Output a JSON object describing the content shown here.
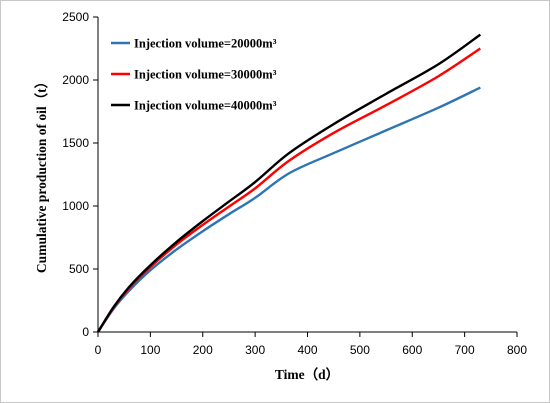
{
  "chart_data": {
    "type": "line",
    "title": "",
    "xlabel": "Time（d）",
    "ylabel": "Cumulative production of oil（t）",
    "xlim": [
      0,
      800
    ],
    "ylim": [
      0,
      2500
    ],
    "xticks": [
      0,
      100,
      200,
      300,
      400,
      500,
      600,
      700,
      800
    ],
    "yticks": [
      0,
      500,
      1000,
      1500,
      2000,
      2500
    ],
    "grid": false,
    "legend_position": "top-left",
    "series": [
      {
        "name": "Injection volume=20000m³",
        "color": "#2e75b6",
        "x": [
          0,
          30,
          60,
          100,
          150,
          200,
          250,
          300,
          365,
          450,
          550,
          650,
          730
        ],
        "y": [
          0,
          185,
          330,
          490,
          655,
          800,
          935,
          1065,
          1260,
          1420,
          1600,
          1780,
          1940
        ]
      },
      {
        "name": "Injection volume=30000m³",
        "color": "#ff0000",
        "x": [
          0,
          30,
          60,
          100,
          150,
          200,
          250,
          300,
          365,
          450,
          550,
          650,
          730
        ],
        "y": [
          0,
          195,
          350,
          515,
          695,
          850,
          995,
          1140,
          1360,
          1580,
          1800,
          2030,
          2250
        ]
      },
      {
        "name": "Injection volume=40000m³",
        "color": "#000000",
        "x": [
          0,
          30,
          60,
          100,
          150,
          200,
          250,
          300,
          365,
          450,
          550,
          650,
          730
        ],
        "y": [
          0,
          200,
          360,
          530,
          715,
          880,
          1035,
          1190,
          1420,
          1650,
          1890,
          2125,
          2360
        ]
      }
    ]
  }
}
